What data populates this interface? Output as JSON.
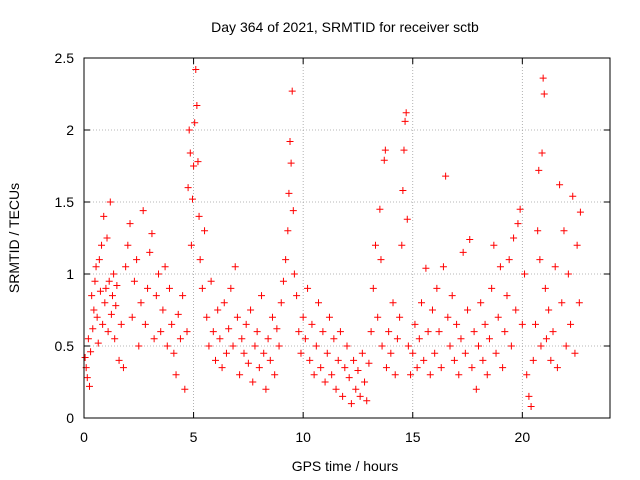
{
  "chart_data": {
    "type": "scatter",
    "title": "Day 364 of 2021, SRMTID for receiver sctb",
    "xlabel": "GPS time / hours",
    "ylabel": "SRMTID / TECUs",
    "xlim": [
      0,
      24
    ],
    "ylim": [
      0,
      2.5
    ],
    "grid": true,
    "marker": "+",
    "x_ticks": [
      0,
      5,
      10,
      15,
      20
    ],
    "x_tick_labels": [
      "0",
      "5",
      "10",
      "15",
      "20"
    ],
    "y_ticks": [
      0,
      0.5,
      1,
      1.5,
      2,
      2.5
    ],
    "y_tick_labels": [
      "0",
      "0.5",
      "1",
      "1.5",
      "2",
      "2.5"
    ],
    "series": [
      {
        "name": "SRMTID",
        "color": "#ff0000",
        "points": [
          [
            0.05,
            0.42
          ],
          [
            0.1,
            0.35
          ],
          [
            0.15,
            0.28
          ],
          [
            0.2,
            0.55
          ],
          [
            0.25,
            0.22
          ],
          [
            0.3,
            0.46
          ],
          [
            0.35,
            0.85
          ],
          [
            0.4,
            0.62
          ],
          [
            0.45,
            0.75
          ],
          [
            0.5,
            0.95
          ],
          [
            0.55,
            1.05
          ],
          [
            0.6,
            0.7
          ],
          [
            0.65,
            0.52
          ],
          [
            0.7,
            1.1
          ],
          [
            0.75,
            0.88
          ],
          [
            0.8,
            1.2
          ],
          [
            0.85,
            0.65
          ],
          [
            0.9,
            1.4
          ],
          [
            0.95,
            0.8
          ],
          [
            1.0,
            0.9
          ],
          [
            1.05,
            1.25
          ],
          [
            1.1,
            0.6
          ],
          [
            1.15,
            0.95
          ],
          [
            1.2,
            1.5
          ],
          [
            1.25,
            0.72
          ],
          [
            1.3,
            0.85
          ],
          [
            1.35,
            1.0
          ],
          [
            1.4,
            0.55
          ],
          [
            1.45,
            0.78
          ],
          [
            1.5,
            0.92
          ],
          [
            1.6,
            0.4
          ],
          [
            1.7,
            0.65
          ],
          [
            1.8,
            0.35
          ],
          [
            1.9,
            1.05
          ],
          [
            2.0,
            1.2
          ],
          [
            2.1,
            1.35
          ],
          [
            2.2,
            0.7
          ],
          [
            2.3,
            0.95
          ],
          [
            2.4,
            1.1
          ],
          [
            2.5,
            0.5
          ],
          [
            2.6,
            0.8
          ],
          [
            2.7,
            1.44
          ],
          [
            2.8,
            0.65
          ],
          [
            2.9,
            0.9
          ],
          [
            3.0,
            1.15
          ],
          [
            3.1,
            1.28
          ],
          [
            3.2,
            0.55
          ],
          [
            3.3,
            0.85
          ],
          [
            3.4,
            1.0
          ],
          [
            3.5,
            0.6
          ],
          [
            3.6,
            0.75
          ],
          [
            3.7,
            1.05
          ],
          [
            3.8,
            0.5
          ],
          [
            3.9,
            0.9
          ],
          [
            4.0,
            0.65
          ],
          [
            4.1,
            0.45
          ],
          [
            4.2,
            0.3
          ],
          [
            4.3,
            0.72
          ],
          [
            4.4,
            0.55
          ],
          [
            4.5,
            0.85
          ],
          [
            4.6,
            0.2
          ],
          [
            4.7,
            0.6
          ],
          [
            4.75,
            1.6
          ],
          [
            4.8,
            2.0
          ],
          [
            4.85,
            1.84
          ],
          [
            4.9,
            1.2
          ],
          [
            4.95,
            1.52
          ],
          [
            5.0,
            1.75
          ],
          [
            5.05,
            2.05
          ],
          [
            5.1,
            2.42
          ],
          [
            5.15,
            2.17
          ],
          [
            5.2,
            1.78
          ],
          [
            5.25,
            1.4
          ],
          [
            5.3,
            1.1
          ],
          [
            5.4,
            0.9
          ],
          [
            5.5,
            1.3
          ],
          [
            5.6,
            0.7
          ],
          [
            5.7,
            0.5
          ],
          [
            5.8,
            0.95
          ],
          [
            5.9,
            0.6
          ],
          [
            6.0,
            0.4
          ],
          [
            6.1,
            0.75
          ],
          [
            6.2,
            0.55
          ],
          [
            6.3,
            0.35
          ],
          [
            6.4,
            0.8
          ],
          [
            6.5,
            0.45
          ],
          [
            6.6,
            0.62
          ],
          [
            6.7,
            0.9
          ],
          [
            6.8,
            0.5
          ],
          [
            6.9,
            1.05
          ],
          [
            7.0,
            0.7
          ],
          [
            7.1,
            0.3
          ],
          [
            7.2,
            0.55
          ],
          [
            7.3,
            0.45
          ],
          [
            7.4,
            0.65
          ],
          [
            7.5,
            0.38
          ],
          [
            7.6,
            0.75
          ],
          [
            7.7,
            0.25
          ],
          [
            7.8,
            0.5
          ],
          [
            7.9,
            0.6
          ],
          [
            8.0,
            0.35
          ],
          [
            8.1,
            0.85
          ],
          [
            8.2,
            0.45
          ],
          [
            8.3,
            0.2
          ],
          [
            8.4,
            0.55
          ],
          [
            8.5,
            0.4
          ],
          [
            8.6,
            0.7
          ],
          [
            8.7,
            0.3
          ],
          [
            8.8,
            0.62
          ],
          [
            8.9,
            0.5
          ],
          [
            9.0,
            0.8
          ],
          [
            9.1,
            0.95
          ],
          [
            9.2,
            1.1
          ],
          [
            9.3,
            1.3
          ],
          [
            9.35,
            1.56
          ],
          [
            9.4,
            1.92
          ],
          [
            9.45,
            1.77
          ],
          [
            9.5,
            2.27
          ],
          [
            9.55,
            1.44
          ],
          [
            9.6,
            1.0
          ],
          [
            9.7,
            0.85
          ],
          [
            9.8,
            0.6
          ],
          [
            9.9,
            0.45
          ],
          [
            10.0,
            0.7
          ],
          [
            10.1,
            0.55
          ],
          [
            10.2,
            0.9
          ],
          [
            10.3,
            0.4
          ],
          [
            10.4,
            0.65
          ],
          [
            10.5,
            0.3
          ],
          [
            10.6,
            0.5
          ],
          [
            10.7,
            0.8
          ],
          [
            10.8,
            0.35
          ],
          [
            10.9,
            0.6
          ],
          [
            11.0,
            0.25
          ],
          [
            11.1,
            0.45
          ],
          [
            11.2,
            0.7
          ],
          [
            11.3,
            0.3
          ],
          [
            11.4,
            0.55
          ],
          [
            11.5,
            0.2
          ],
          [
            11.6,
            0.4
          ],
          [
            11.7,
            0.6
          ],
          [
            11.8,
            0.15
          ],
          [
            11.9,
            0.35
          ],
          [
            12.0,
            0.5
          ],
          [
            12.1,
            0.28
          ],
          [
            12.2,
            0.1
          ],
          [
            12.3,
            0.4
          ],
          [
            12.4,
            0.2
          ],
          [
            12.5,
            0.33
          ],
          [
            12.6,
            0.15
          ],
          [
            12.7,
            0.45
          ],
          [
            12.8,
            0.25
          ],
          [
            12.9,
            0.12
          ],
          [
            13.0,
            0.38
          ],
          [
            13.1,
            0.6
          ],
          [
            13.2,
            0.9
          ],
          [
            13.3,
            1.2
          ],
          [
            13.4,
            0.7
          ],
          [
            13.5,
            1.45
          ],
          [
            13.55,
            1.1
          ],
          [
            13.6,
            0.5
          ],
          [
            13.7,
            1.79
          ],
          [
            13.75,
            1.86
          ],
          [
            13.8,
            0.35
          ],
          [
            13.9,
            0.6
          ],
          [
            14.0,
            0.45
          ],
          [
            14.1,
            0.8
          ],
          [
            14.2,
            0.3
          ],
          [
            14.3,
            0.55
          ],
          [
            14.4,
            0.7
          ],
          [
            14.5,
            1.2
          ],
          [
            14.55,
            1.58
          ],
          [
            14.6,
            1.86
          ],
          [
            14.65,
            2.06
          ],
          [
            14.7,
            2.12
          ],
          [
            14.75,
            1.38
          ],
          [
            14.8,
            0.5
          ],
          [
            14.9,
            0.3
          ],
          [
            15.0,
            0.45
          ],
          [
            15.1,
            0.65
          ],
          [
            15.2,
            0.35
          ],
          [
            15.3,
            0.55
          ],
          [
            15.4,
            0.8
          ],
          [
            15.5,
            0.4
          ],
          [
            15.6,
            1.04
          ],
          [
            15.7,
            0.6
          ],
          [
            15.8,
            0.3
          ],
          [
            15.9,
            0.75
          ],
          [
            16.0,
            0.45
          ],
          [
            16.1,
            0.9
          ],
          [
            16.2,
            0.6
          ],
          [
            16.3,
            0.35
          ],
          [
            16.4,
            1.05
          ],
          [
            16.5,
            1.68
          ],
          [
            16.6,
            0.7
          ],
          [
            16.7,
            0.5
          ],
          [
            16.8,
            0.85
          ],
          [
            16.9,
            0.4
          ],
          [
            17.0,
            0.65
          ],
          [
            17.1,
            0.3
          ],
          [
            17.2,
            0.55
          ],
          [
            17.3,
            1.15
          ],
          [
            17.4,
            0.45
          ],
          [
            17.5,
            0.75
          ],
          [
            17.6,
            1.24
          ],
          [
            17.7,
            0.35
          ],
          [
            17.8,
            0.6
          ],
          [
            17.9,
            0.2
          ],
          [
            18.0,
            0.5
          ],
          [
            18.1,
            0.8
          ],
          [
            18.2,
            0.4
          ],
          [
            18.3,
            0.65
          ],
          [
            18.4,
            0.3
          ],
          [
            18.5,
            0.55
          ],
          [
            18.6,
            0.9
          ],
          [
            18.7,
            1.2
          ],
          [
            18.8,
            0.45
          ],
          [
            18.9,
            0.7
          ],
          [
            19.0,
            1.05
          ],
          [
            19.1,
            0.35
          ],
          [
            19.2,
            0.6
          ],
          [
            19.3,
            0.85
          ],
          [
            19.4,
            1.1
          ],
          [
            19.5,
            0.5
          ],
          [
            19.6,
            1.25
          ],
          [
            19.7,
            0.75
          ],
          [
            19.8,
            1.35
          ],
          [
            19.9,
            1.45
          ],
          [
            20.0,
            0.65
          ],
          [
            20.1,
            1.0
          ],
          [
            20.2,
            0.3
          ],
          [
            20.3,
            0.15
          ],
          [
            20.4,
            0.08
          ],
          [
            20.5,
            0.4
          ],
          [
            20.6,
            0.65
          ],
          [
            20.7,
            1.3
          ],
          [
            20.75,
            1.72
          ],
          [
            20.8,
            1.1
          ],
          [
            20.85,
            0.5
          ],
          [
            20.9,
            1.84
          ],
          [
            20.95,
            2.36
          ],
          [
            21.0,
            2.25
          ],
          [
            21.05,
            0.9
          ],
          [
            21.1,
            0.55
          ],
          [
            21.2,
            0.75
          ],
          [
            21.3,
            0.4
          ],
          [
            21.4,
            0.6
          ],
          [
            21.5,
            1.05
          ],
          [
            21.6,
            0.35
          ],
          [
            21.7,
            1.62
          ],
          [
            21.8,
            0.8
          ],
          [
            21.9,
            1.3
          ],
          [
            22.0,
            0.5
          ],
          [
            22.1,
            1.0
          ],
          [
            22.2,
            0.65
          ],
          [
            22.3,
            1.54
          ],
          [
            22.4,
            0.45
          ],
          [
            22.5,
            1.2
          ],
          [
            22.6,
            0.8
          ],
          [
            22.65,
            1.43
          ]
        ]
      }
    ]
  }
}
